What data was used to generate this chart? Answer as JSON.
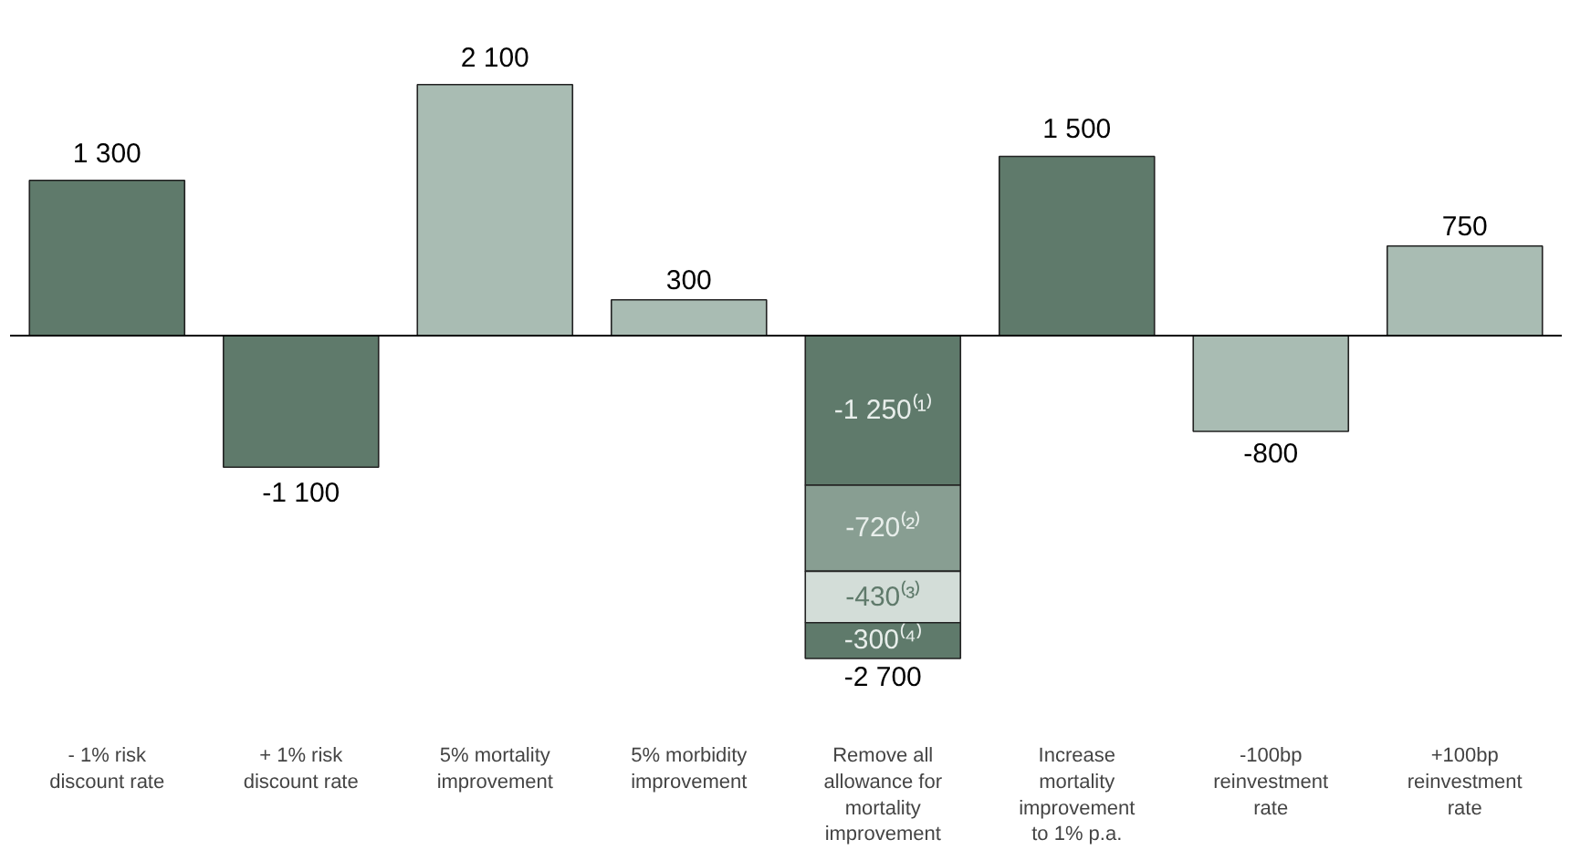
{
  "chart_data": {
    "type": "bar",
    "stacked": true,
    "categories": [
      "- 1% risk\ndiscount rate",
      "+ 1% risk\ndiscount rate",
      "5% mortality\nimprovement",
      "5% morbidity\nimprovement",
      "Remove all\nallowance for\nmortality\nimprovement",
      "Increase\nmortality\nimprovement\nto 1% p.a.",
      "-100bp\nreinvestment\nrate",
      "+100bp\nreinvestment\nrate"
    ],
    "series": [
      {
        "values": [
          1300,
          -1100,
          2100,
          300,
          -1250,
          1500,
          -800,
          750
        ],
        "colors": [
          "#5f7a6b",
          "#5f7a6b",
          "#a9bcb3",
          "#a9bcb3",
          "#5f7a6b",
          "#5f7a6b",
          "#a9bcb3",
          "#a9bcb3"
        ],
        "value_labels": [
          "1 300",
          "-1 100",
          "2 100",
          "300",
          "-1 250⁽¹⁾",
          "1 500",
          "-800",
          "750"
        ]
      },
      {
        "values": [
          null,
          null,
          null,
          null,
          -720,
          null,
          null,
          null
        ],
        "color": "#889e92",
        "value_labels": [
          null,
          null,
          null,
          null,
          "-720⁽²⁾",
          null,
          null,
          null
        ]
      },
      {
        "values": [
          null,
          null,
          null,
          null,
          -430,
          null,
          null,
          null
        ],
        "color": "#d3ddd8",
        "value_labels": [
          null,
          null,
          null,
          null,
          "-430⁽³⁾",
          null,
          null,
          null
        ]
      },
      {
        "values": [
          null,
          null,
          null,
          null,
          -300,
          null,
          null,
          null
        ],
        "color": "#5f7a6b",
        "value_labels": [
          null,
          null,
          null,
          null,
          "-300⁽⁴⁾",
          null,
          null,
          null
        ]
      }
    ],
    "totals": [
      null,
      null,
      null,
      null,
      "-2 700",
      null,
      null,
      null
    ],
    "grid": false
  }
}
